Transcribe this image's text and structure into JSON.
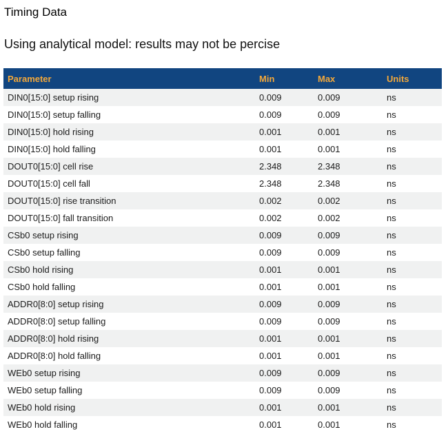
{
  "page": {
    "title": "Timing Data",
    "subtitle": "Using analytical model: results may not be percise"
  },
  "table": {
    "columns": [
      "Parameter",
      "Min",
      "Max",
      "Units"
    ],
    "rows": [
      {
        "parameter": "DIN0[15:0] setup rising",
        "min": "0.009",
        "max": "0.009",
        "units": "ns"
      },
      {
        "parameter": "DIN0[15:0] setup falling",
        "min": "0.009",
        "max": "0.009",
        "units": "ns"
      },
      {
        "parameter": "DIN0[15:0] hold rising",
        "min": "0.001",
        "max": "0.001",
        "units": "ns"
      },
      {
        "parameter": "DIN0[15:0] hold falling",
        "min": "0.001",
        "max": "0.001",
        "units": "ns"
      },
      {
        "parameter": "DOUT0[15:0] cell rise",
        "min": "2.348",
        "max": "2.348",
        "units": "ns"
      },
      {
        "parameter": "DOUT0[15:0] cell fall",
        "min": "2.348",
        "max": "2.348",
        "units": "ns"
      },
      {
        "parameter": "DOUT0[15:0] rise transition",
        "min": "0.002",
        "max": "0.002",
        "units": "ns"
      },
      {
        "parameter": "DOUT0[15:0] fall transition",
        "min": "0.002",
        "max": "0.002",
        "units": "ns"
      },
      {
        "parameter": "CSb0 setup rising",
        "min": "0.009",
        "max": "0.009",
        "units": "ns"
      },
      {
        "parameter": "CSb0 setup falling",
        "min": "0.009",
        "max": "0.009",
        "units": "ns"
      },
      {
        "parameter": "CSb0 hold rising",
        "min": "0.001",
        "max": "0.001",
        "units": "ns"
      },
      {
        "parameter": "CSb0 hold falling",
        "min": "0.001",
        "max": "0.001",
        "units": "ns"
      },
      {
        "parameter": "ADDR0[8:0] setup rising",
        "min": "0.009",
        "max": "0.009",
        "units": "ns"
      },
      {
        "parameter": "ADDR0[8:0] setup falling",
        "min": "0.009",
        "max": "0.009",
        "units": "ns"
      },
      {
        "parameter": "ADDR0[8:0] hold rising",
        "min": "0.001",
        "max": "0.001",
        "units": "ns"
      },
      {
        "parameter": "ADDR0[8:0] hold falling",
        "min": "0.001",
        "max": "0.001",
        "units": "ns"
      },
      {
        "parameter": "WEb0 setup rising",
        "min": "0.009",
        "max": "0.009",
        "units": "ns"
      },
      {
        "parameter": "WEb0 setup falling",
        "min": "0.009",
        "max": "0.009",
        "units": "ns"
      },
      {
        "parameter": "WEb0 hold rising",
        "min": "0.001",
        "max": "0.001",
        "units": "ns"
      },
      {
        "parameter": "WEb0 hold falling",
        "min": "0.001",
        "max": "0.001",
        "units": "ns"
      }
    ]
  },
  "colors": {
    "header_bg": "#114580",
    "header_text": "#f3a83a",
    "row_alt_bg": "#f0f1f1",
    "cell_text": "#1a1a1a"
  }
}
